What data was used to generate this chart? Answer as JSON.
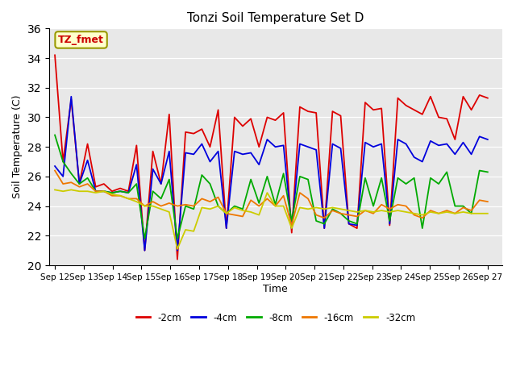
{
  "title": "Tonzi Soil Temperature Set D",
  "xlabel": "Time",
  "ylabel": "Soil Temperature (C)",
  "ylim": [
    20,
    36
  ],
  "x_tick_labels": [
    "Sep 12",
    "Sep 13",
    "Sep 14",
    "Sep 15",
    "Sep 16",
    "Sep 17",
    "Sep 18",
    "Sep 19",
    "Sep 20",
    "Sep 21",
    "Sep 22",
    "Sep 23",
    "Sep 24",
    "Sep 25",
    "Sep 26",
    "Sep 27"
  ],
  "annotation_text": "TZ_fmet",
  "annotation_bg": "#ffffcc",
  "annotation_fg": "#cc0000",
  "annotation_edge": "#999900",
  "bg_color": "#e8e8e8",
  "series": {
    "-2cm": {
      "color": "#dd0000",
      "data": [
        34.2,
        27.0,
        31.2,
        25.5,
        28.2,
        25.3,
        25.5,
        25.0,
        25.2,
        25.0,
        28.1,
        21.0,
        27.7,
        25.5,
        30.2,
        20.4,
        29.0,
        28.9,
        29.2,
        28.0,
        30.5,
        22.5,
        30.0,
        29.4,
        29.9,
        28.0,
        30.0,
        29.8,
        30.3,
        22.2,
        30.7,
        30.4,
        30.3,
        22.5,
        30.4,
        30.1,
        22.8,
        22.5,
        31.0,
        30.5,
        30.6,
        22.7,
        31.3,
        30.8,
        30.5,
        30.2,
        31.4,
        30.0,
        29.9,
        28.5,
        31.4,
        30.5,
        31.5,
        31.3
      ]
    },
    "-4cm": {
      "color": "#0000dd",
      "data": [
        26.7,
        26.0,
        31.4,
        25.5,
        27.1,
        25.0,
        25.0,
        24.9,
        25.0,
        24.9,
        26.8,
        21.0,
        26.5,
        25.5,
        27.7,
        21.0,
        27.6,
        27.5,
        28.2,
        27.0,
        27.7,
        22.5,
        27.7,
        27.5,
        27.6,
        26.8,
        28.5,
        28.0,
        28.1,
        22.5,
        28.2,
        28.0,
        27.8,
        22.5,
        28.2,
        27.9,
        22.8,
        22.7,
        28.3,
        28.0,
        28.2,
        22.8,
        28.5,
        28.2,
        27.3,
        27.0,
        28.4,
        28.1,
        28.2,
        27.5,
        28.3,
        27.5,
        28.7,
        28.5
      ]
    },
    "-8cm": {
      "color": "#00aa00",
      "data": [
        28.8,
        27.0,
        26.2,
        25.5,
        25.9,
        25.0,
        25.0,
        24.9,
        25.0,
        24.9,
        25.5,
        21.8,
        25.0,
        24.5,
        25.8,
        21.8,
        24.0,
        23.8,
        26.1,
        25.5,
        24.0,
        23.5,
        24.0,
        23.8,
        25.8,
        24.2,
        26.0,
        24.1,
        26.2,
        23.0,
        26.0,
        25.8,
        23.0,
        22.8,
        23.8,
        23.5,
        23.0,
        22.8,
        25.9,
        24.0,
        25.9,
        23.0,
        25.9,
        25.5,
        25.9,
        22.5,
        25.9,
        25.5,
        26.3,
        24.0,
        24.0,
        23.5,
        26.4,
        26.3
      ]
    },
    "-16cm": {
      "color": "#ee7700",
      "data": [
        26.4,
        25.5,
        25.6,
        25.3,
        25.5,
        25.0,
        25.0,
        24.7,
        24.7,
        24.5,
        24.5,
        24.0,
        24.3,
        24.0,
        24.2,
        24.0,
        24.1,
        24.0,
        24.5,
        24.3,
        24.6,
        23.5,
        23.4,
        23.3,
        24.4,
        24.0,
        24.5,
        24.0,
        24.7,
        22.7,
        24.9,
        24.5,
        23.4,
        23.2,
        23.7,
        23.5,
        23.4,
        23.3,
        23.7,
        23.5,
        24.1,
        23.8,
        24.1,
        24.0,
        23.4,
        23.2,
        23.7,
        23.5,
        23.7,
        23.5,
        23.9,
        23.7,
        24.4,
        24.3
      ]
    },
    "-32cm": {
      "color": "#cccc00",
      "data": [
        25.1,
        25.0,
        25.1,
        25.0,
        25.0,
        24.9,
        25.0,
        24.8,
        24.7,
        24.5,
        24.3,
        24.0,
        24.0,
        23.8,
        23.6,
        21.1,
        22.4,
        22.3,
        23.9,
        23.8,
        24.0,
        23.5,
        23.9,
        23.7,
        23.6,
        23.4,
        24.9,
        24.0,
        24.0,
        22.5,
        23.9,
        23.8,
        23.9,
        23.8,
        23.9,
        23.8,
        23.7,
        23.6,
        23.7,
        23.6,
        23.7,
        23.6,
        23.7,
        23.6,
        23.5,
        23.4,
        23.6,
        23.5,
        23.6,
        23.5,
        23.6,
        23.5,
        23.5,
        23.5
      ]
    }
  },
  "n_ticks": 16,
  "title_fontsize": 11,
  "axis_fontsize": 9,
  "tick_fontsize": 7.5
}
